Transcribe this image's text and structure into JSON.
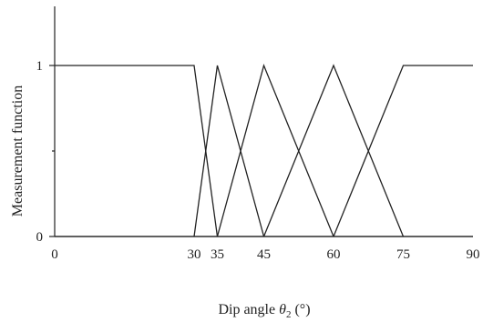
{
  "chart_data": {
    "type": "line",
    "xlabel": "Dip angle θ2 (°)",
    "xlabel_parts": {
      "prefix": "Dip angle ",
      "symbol": "θ",
      "subscript": "2",
      "suffix": " (°)"
    },
    "ylabel": "Measurement function",
    "xlim": [
      0,
      90
    ],
    "ylim": [
      0,
      1.3
    ],
    "x_ticks": [
      0,
      30,
      35,
      45,
      60,
      75,
      90
    ],
    "y_ticks": [
      0,
      1
    ],
    "y_minor_ticks": [
      0.5
    ],
    "grid": false,
    "legend": "none",
    "series": [
      {
        "x": [
          0,
          30,
          35
        ],
        "y": [
          1,
          1,
          0
        ]
      },
      {
        "x": [
          30,
          35,
          45
        ],
        "y": [
          0,
          1,
          0
        ]
      },
      {
        "x": [
          35,
          45,
          60
        ],
        "y": [
          0,
          1,
          0
        ]
      },
      {
        "x": [
          45,
          60,
          75
        ],
        "y": [
          0,
          1,
          0
        ]
      },
      {
        "x": [
          60,
          75,
          90
        ],
        "y": [
          0,
          1,
          1
        ]
      },
      {
        "x": [
          0,
          90
        ],
        "y": [
          0,
          0
        ]
      }
    ]
  }
}
